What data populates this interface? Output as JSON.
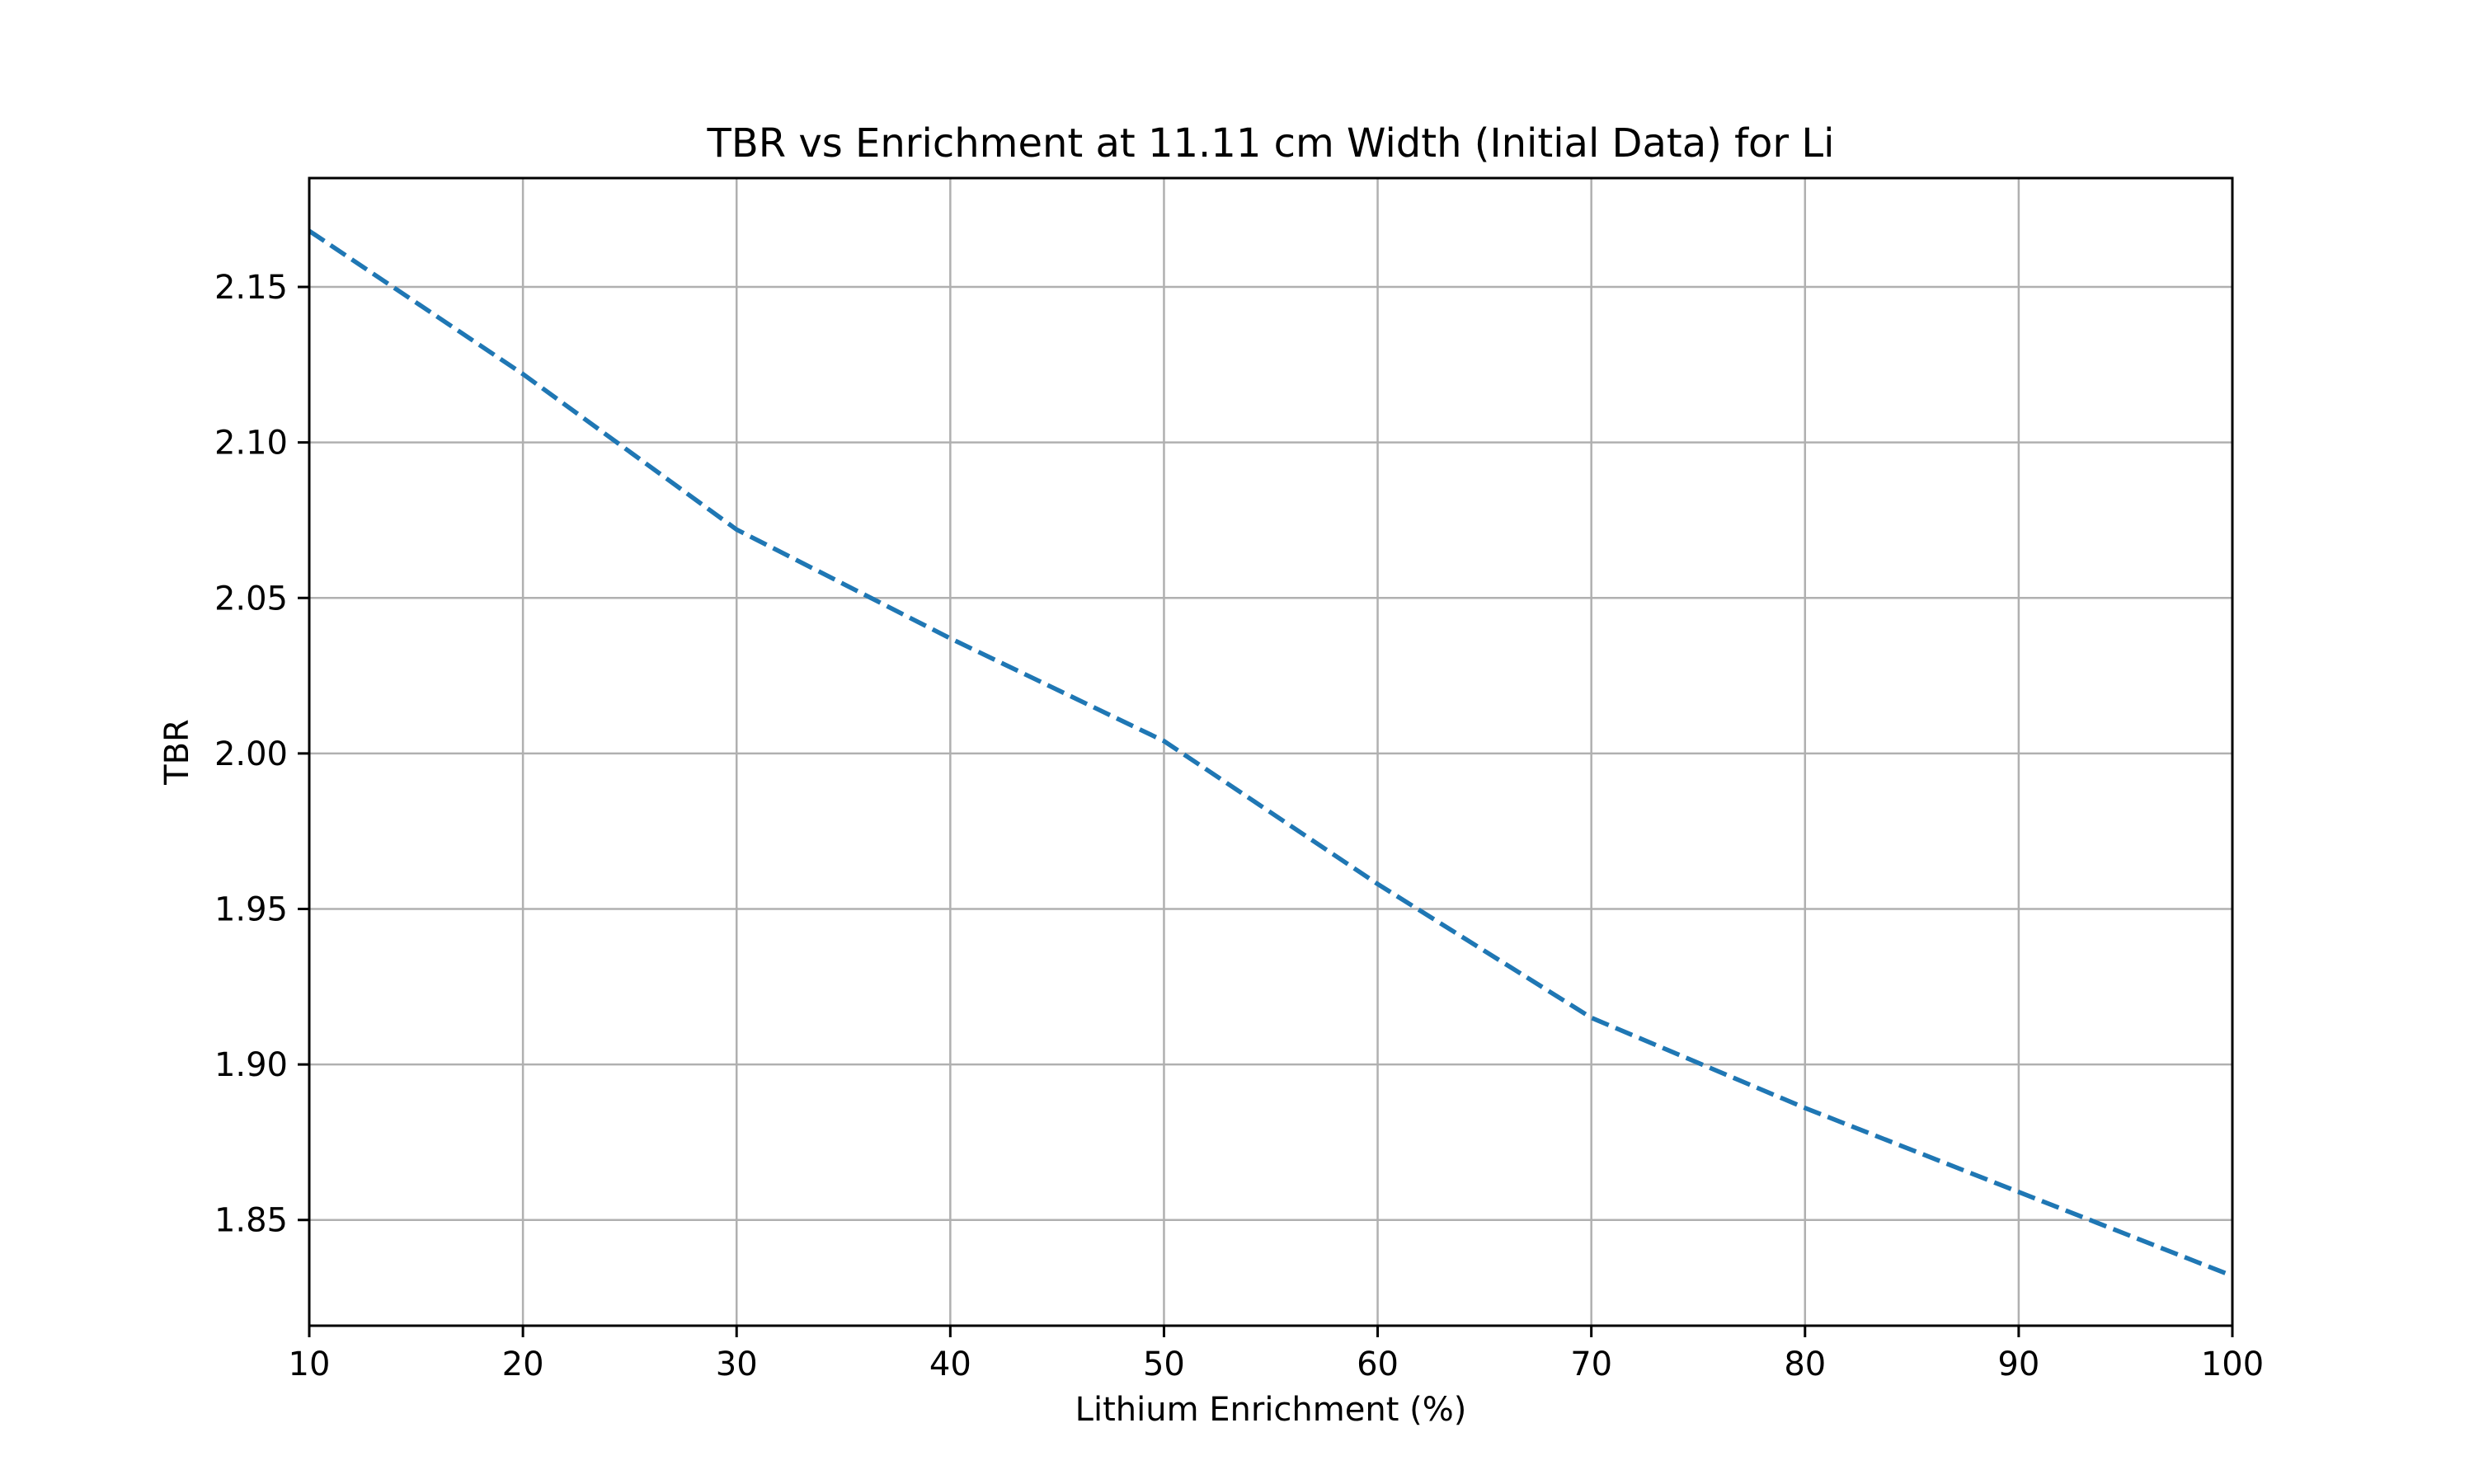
{
  "chart_data": {
    "type": "line",
    "title": "TBR vs Enrichment at 11.11 cm Width (Initial Data) for Li",
    "xlabel": "Lithium Enrichment (%)",
    "ylabel": "TBR",
    "xlim": [
      10,
      100
    ],
    "ylim": [
      1.816,
      2.185
    ],
    "xticks": [
      10,
      20,
      30,
      40,
      50,
      60,
      70,
      80,
      90,
      100
    ],
    "xtick_labels": [
      "10",
      "20",
      "30",
      "40",
      "50",
      "60",
      "70",
      "80",
      "90",
      "100"
    ],
    "yticks": [
      1.85,
      1.9,
      1.95,
      2.0,
      2.05,
      2.1,
      2.15
    ],
    "ytick_labels": [
      "1.85",
      "1.90",
      "1.95",
      "2.00",
      "2.05",
      "2.10",
      "2.15"
    ],
    "grid": true,
    "series": [
      {
        "line_style": "dashed",
        "color": "#1f77b4",
        "x": [
          10,
          20,
          30,
          40,
          50,
          60,
          70,
          80,
          90,
          100
        ],
        "y": [
          2.168,
          2.122,
          2.072,
          2.037,
          2.004,
          1.958,
          1.915,
          1.886,
          1.859,
          1.832
        ]
      }
    ]
  }
}
